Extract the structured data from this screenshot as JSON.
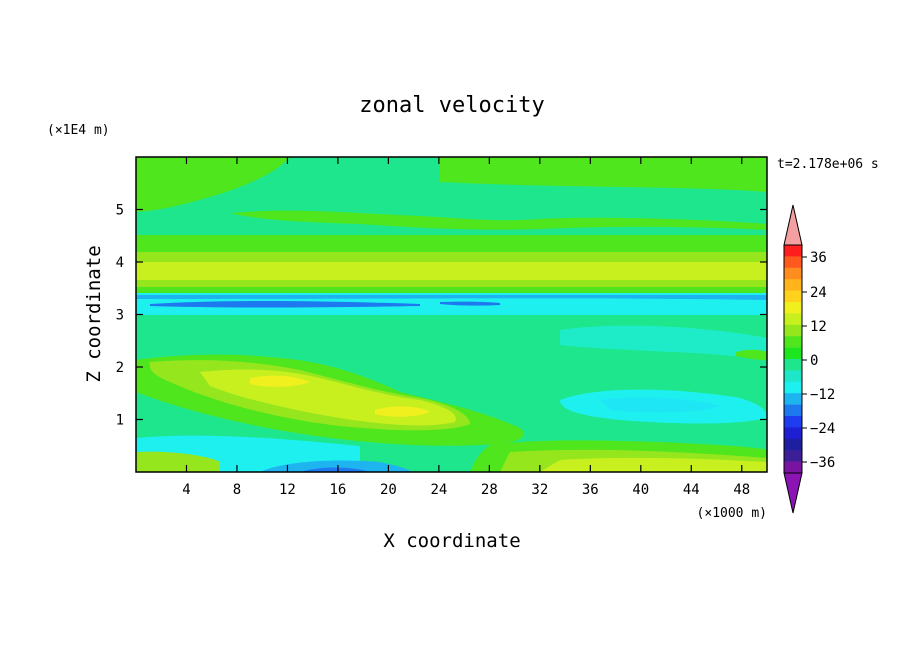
{
  "chart_data": {
    "type": "heatmap",
    "title": "zonal velocity",
    "xlabel": "X coordinate",
    "ylabel": "Z coordinate",
    "x_unit": "(×1000 m)",
    "y_unit": "(×1E4 m)",
    "time_label": "t=2.178e+06 s",
    "xlim": [
      0,
      50
    ],
    "ylim": [
      0,
      6
    ],
    "x_ticks": [
      4,
      8,
      12,
      16,
      20,
      24,
      28,
      32,
      36,
      40,
      44,
      48
    ],
    "y_ticks": [
      1,
      2,
      3,
      4,
      5
    ],
    "colorbar": {
      "labels": [
        "36",
        "24",
        "12",
        "0",
        "-12",
        "-24",
        "-36"
      ],
      "colors_top_to_bottom": [
        "#ff1e1e",
        "#ff5a1e",
        "#ff8c1e",
        "#ffb41e",
        "#ffd21e",
        "#f0f01e",
        "#c8f01e",
        "#96e61e",
        "#50e61e",
        "#1ee61e",
        "#1ee68c",
        "#1ee6c8",
        "#1ef0f0",
        "#1eb4f0",
        "#1e78f0",
        "#1e3cf0",
        "#1e1ed2",
        "#1e1ea0",
        "#3c1e96",
        "#7814a0"
      ],
      "over_color": "#f4a0a0",
      "under_color": "#8c14b4"
    },
    "features": [
      {
        "desc": "background level",
        "value": -3
      },
      {
        "desc": "jet band near z=3.8",
        "value": 10
      },
      {
        "desc": "negative band near z=3.25",
        "value": -12
      },
      {
        "desc": "positive tongue x=2-24, z=0.8-2.0",
        "value": 12
      },
      {
        "desc": "positive layer at surface x=30-50",
        "value": 8
      },
      {
        "desc": "negative pocket near surface x=15",
        "value": -18
      }
    ]
  }
}
